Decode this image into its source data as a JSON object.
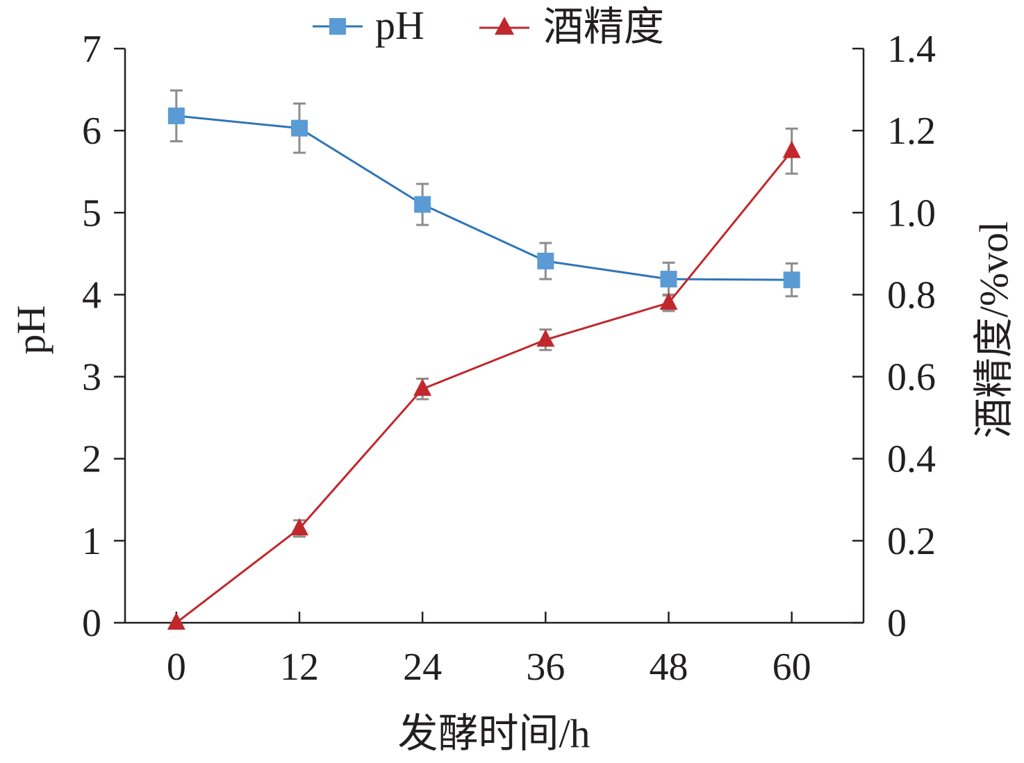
{
  "chart_data": {
    "type": "line",
    "x": [
      0,
      12,
      24,
      36,
      48,
      60
    ],
    "x_tick_labels": [
      "0",
      "12",
      "24",
      "36",
      "48",
      "60"
    ],
    "xlabel": "发酵时间/h",
    "ylabel_left": "pH",
    "ylabel_right": "酒精度/%vol",
    "ylim_left": [
      0,
      7
    ],
    "ylim_right": [
      0,
      1.4
    ],
    "y_left_ticks": [
      "0",
      "1",
      "2",
      "3",
      "4",
      "5",
      "6",
      "7"
    ],
    "y_right_ticks": [
      "0",
      "0.2",
      "0.4",
      "0.6",
      "0.8",
      "1.0",
      "1.2",
      "1.4"
    ],
    "legend_position": "top-center",
    "grid": false,
    "series": [
      {
        "name": "pH",
        "axis": "left",
        "marker": "square",
        "color": "#2e75b6",
        "marker_color": "#5b9bd5",
        "values": [
          6.18,
          6.03,
          5.1,
          4.41,
          4.19,
          4.18
        ],
        "errors": [
          0.31,
          0.3,
          0.25,
          0.22,
          0.2,
          0.2
        ]
      },
      {
        "name": "酒精度",
        "axis": "right",
        "marker": "triangle",
        "color": "#c0282d",
        "marker_color": "#c0282d",
        "values": [
          0.0,
          0.23,
          0.57,
          0.69,
          0.78,
          1.15
        ],
        "errors": [
          0.0,
          0.02,
          0.025,
          0.025,
          0.02,
          0.055
        ]
      }
    ]
  }
}
